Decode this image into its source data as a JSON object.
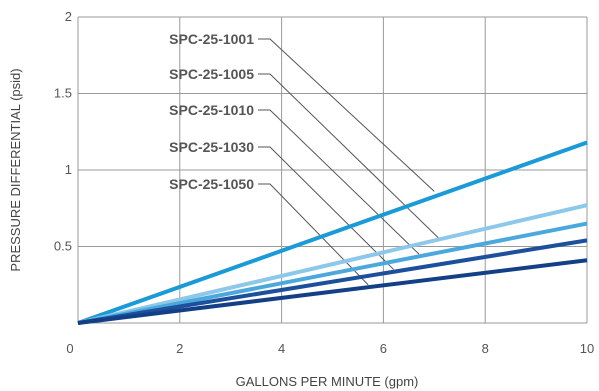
{
  "chart_data": {
    "type": "line",
    "xlabel": "GALLONS PER MINUTE (gpm)",
    "ylabel": "PRESSURE DIFFERENTIAL  (psid)",
    "xlim": [
      0,
      10
    ],
    "ylim": [
      0,
      2
    ],
    "x_ticks": [
      "0",
      "2",
      "4",
      "6",
      "8",
      "10"
    ],
    "y_ticks": [
      "0.5",
      "1",
      "1.5",
      "2"
    ],
    "grid": true,
    "colors": {
      "SPC-25-1001": "#1a9ad6",
      "SPC-25-1005": "#8cc8ea",
      "SPC-25-1010": "#4aa8dd",
      "SPC-25-1030": "#1c4f9c",
      "SPC-25-1050": "#123f86"
    },
    "series": [
      {
        "name": "SPC-25-1001",
        "x": [
          0,
          10
        ],
        "y": [
          0,
          1.18
        ],
        "callout_point": [
          7.0,
          0.86
        ]
      },
      {
        "name": "SPC-25-1005",
        "x": [
          0,
          10
        ],
        "y": [
          0,
          0.77
        ],
        "callout_point": [
          7.1,
          0.55
        ]
      },
      {
        "name": "SPC-25-1010",
        "x": [
          0,
          10
        ],
        "y": [
          0,
          0.65
        ],
        "callout_point": [
          6.7,
          0.45
        ]
      },
      {
        "name": "SPC-25-1030",
        "x": [
          0,
          10
        ],
        "y": [
          0,
          0.54
        ],
        "callout_point": [
          6.2,
          0.35
        ]
      },
      {
        "name": "SPC-25-1050",
        "x": [
          0,
          10
        ],
        "y": [
          0,
          0.41
        ],
        "callout_point": [
          5.7,
          0.25
        ]
      }
    ]
  }
}
